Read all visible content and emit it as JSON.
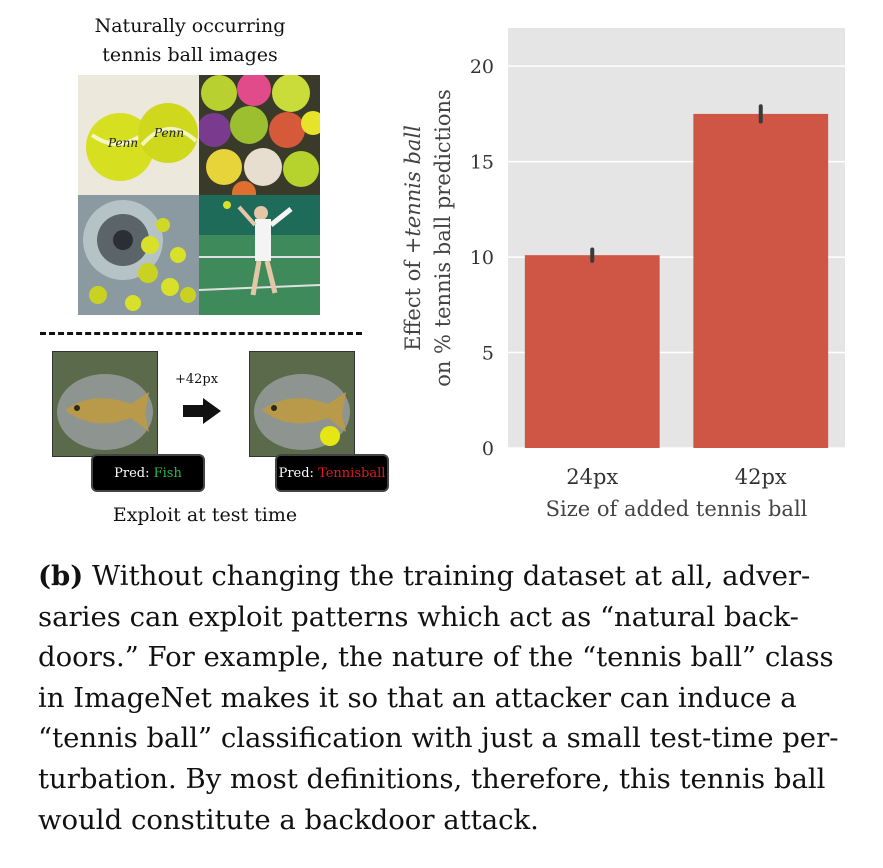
{
  "figure": {
    "top_caption_line1": "Naturally occurring",
    "top_caption_line2": "tennis ball images",
    "arrow_label": "+42px",
    "pred_prefix": "Pred:",
    "pred_left_class": "Fish",
    "pred_right_class": "Tennisball",
    "bottom_caption": "Exploit at test time",
    "colors": {
      "fish_label": "#2db84a",
      "tennis_label": "#e01b1b"
    }
  },
  "chart_data": {
    "type": "bar",
    "categories": [
      "24px",
      "42px"
    ],
    "values": [
      10.1,
      17.5
    ],
    "error_bars": [
      [
        9.8,
        10.4
      ],
      [
        17.1,
        17.9
      ]
    ],
    "xlabel": "Size of added tennis ball",
    "ylabel_line1_prefix": "Effect of ",
    "ylabel_line1_italic": "+tennis ball",
    "ylabel_line2": "on % tennis ball predictions",
    "ylim": [
      0,
      22
    ],
    "yticks": [
      0,
      5,
      10,
      15,
      20
    ],
    "grid": true,
    "background": "#e5e5e5",
    "bar_color": "#cf5545"
  },
  "caption": {
    "label": "(b)",
    "lines": [
      " Without changing the training dataset at all, adver-",
      "saries can exploit patterns which act as “natural back-",
      "doors.” For example, the nature of the “tennis ball” class",
      "in ImageNet makes it so that an attacker can induce a",
      "“tennis ball” classification with just a small test-time per-",
      "turbation. By most definitions, therefore, this tennis ball",
      "would constitute a backdoor attack."
    ]
  }
}
